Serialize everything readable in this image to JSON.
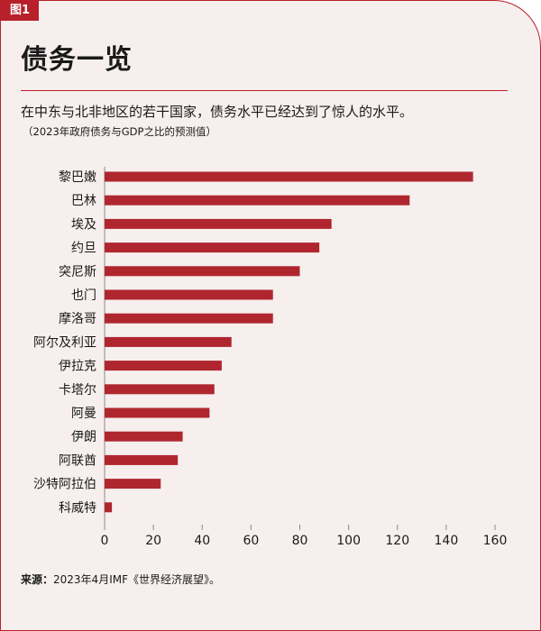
{
  "figure_tag": "图1",
  "title": "债务一览",
  "subtitle": "在中东与北非地区的若干国家，债务水平已经达到了惊人的水平。",
  "note": "（2023年政府债务与GDP之比的预测值）",
  "source_label": "来源：",
  "source_text": "2023年4月IMF《世界经济展望》。",
  "colors": {
    "bar": "#b0262f",
    "accent": "#b8202a",
    "background": "#f6efed"
  },
  "chart_data": {
    "type": "bar",
    "orientation": "horizontal",
    "categories": [
      "黎巴嫩",
      "巴林",
      "埃及",
      "约旦",
      "突尼斯",
      "也门",
      "摩洛哥",
      "阿尔及利亚",
      "伊拉克",
      "卡塔尔",
      "阿曼",
      "伊朗",
      "阿联酋",
      "沙特阿拉伯",
      "科威特"
    ],
    "values": [
      151,
      125,
      93,
      88,
      80,
      69,
      69,
      52,
      48,
      45,
      43,
      32,
      30,
      23,
      3
    ],
    "xticks": [
      0,
      20,
      40,
      60,
      80,
      100,
      120,
      140,
      160
    ],
    "xlim": [
      0,
      160
    ],
    "grid": false
  }
}
